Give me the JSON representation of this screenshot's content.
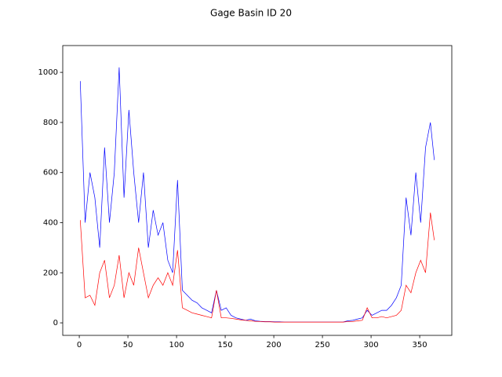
{
  "chart_data": {
    "type": "line",
    "title": "Gage Basin ID 20",
    "x": [
      1,
      6,
      11,
      16,
      21,
      26,
      31,
      36,
      41,
      46,
      51,
      56,
      61,
      66,
      71,
      76,
      81,
      86,
      91,
      96,
      101,
      106,
      111,
      116,
      121,
      126,
      131,
      136,
      141,
      146,
      151,
      156,
      161,
      166,
      171,
      176,
      181,
      186,
      191,
      196,
      201,
      206,
      211,
      216,
      221,
      226,
      231,
      236,
      241,
      246,
      251,
      256,
      261,
      266,
      271,
      276,
      281,
      286,
      291,
      296,
      301,
      306,
      311,
      316,
      321,
      326,
      331,
      336,
      341,
      346,
      351,
      356,
      361,
      365
    ],
    "series": [
      {
        "color": "#0000ff",
        "values": [
          965,
          400,
          600,
          500,
          300,
          700,
          400,
          600,
          1020,
          500,
          850,
          600,
          400,
          600,
          300,
          450,
          350,
          400,
          250,
          200,
          570,
          130,
          110,
          90,
          80,
          60,
          50,
          40,
          130,
          50,
          60,
          30,
          20,
          15,
          10,
          15,
          8,
          6,
          5,
          5,
          4,
          4,
          3,
          3,
          3,
          3,
          3,
          3,
          3,
          3,
          3,
          3,
          3,
          3,
          3,
          8,
          10,
          15,
          20,
          50,
          30,
          40,
          50,
          50,
          70,
          100,
          150,
          500,
          350,
          600,
          400,
          700,
          800,
          650
        ]
      },
      {
        "color": "#ff0000",
        "values": [
          410,
          100,
          110,
          70,
          200,
          250,
          100,
          150,
          270,
          100,
          200,
          150,
          300,
          200,
          100,
          150,
          180,
          150,
          200,
          150,
          290,
          60,
          50,
          40,
          35,
          30,
          25,
          20,
          130,
          20,
          20,
          18,
          15,
          12,
          10,
          8,
          6,
          5,
          4,
          4,
          3,
          3,
          3,
          3,
          3,
          3,
          3,
          3,
          3,
          3,
          3,
          3,
          3,
          3,
          3,
          5,
          5,
          8,
          10,
          60,
          20,
          20,
          25,
          20,
          25,
          30,
          50,
          150,
          120,
          200,
          250,
          200,
          440,
          330
        ]
      }
    ],
    "xlim": [
      -17,
      383
    ],
    "ylim": [
      -50,
      1107
    ],
    "xticks": [
      0,
      50,
      100,
      150,
      200,
      250,
      300,
      350
    ],
    "yticks": [
      0,
      200,
      400,
      600,
      800,
      1000
    ]
  }
}
